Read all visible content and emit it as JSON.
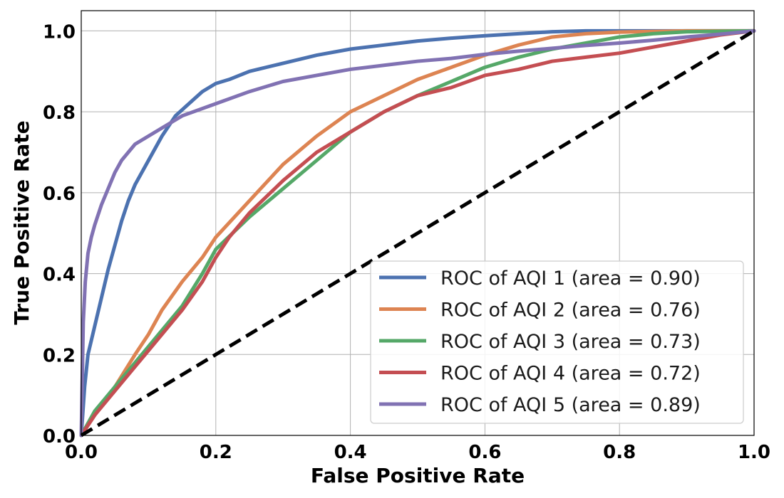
{
  "chart_data": {
    "type": "line",
    "title": "",
    "xlabel": "False Positive Rate",
    "ylabel": "True Positive Rate",
    "xlim": [
      0.0,
      1.0
    ],
    "ylim": [
      0.0,
      1.05
    ],
    "xticks": [
      "0.0",
      "0.2",
      "0.4",
      "0.6",
      "0.8",
      "1.0"
    ],
    "yticks": [
      "0.0",
      "0.2",
      "0.4",
      "0.6",
      "0.8",
      "1.0"
    ],
    "grid": true,
    "legend_position": "lower-right",
    "series": [
      {
        "name": "ROC of AQI 1 (area = 0.90)",
        "color": "#4c72b0",
        "x": [
          0.0,
          0.005,
          0.01,
          0.02,
          0.03,
          0.04,
          0.05,
          0.06,
          0.07,
          0.08,
          0.1,
          0.12,
          0.14,
          0.16,
          0.18,
          0.2,
          0.22,
          0.25,
          0.3,
          0.35,
          0.4,
          0.45,
          0.5,
          0.55,
          0.6,
          0.65,
          0.7,
          0.75,
          0.8,
          0.9,
          1.0
        ],
        "y": [
          0.0,
          0.12,
          0.2,
          0.27,
          0.34,
          0.41,
          0.47,
          0.53,
          0.58,
          0.62,
          0.68,
          0.74,
          0.79,
          0.82,
          0.85,
          0.87,
          0.88,
          0.9,
          0.92,
          0.94,
          0.955,
          0.965,
          0.975,
          0.982,
          0.988,
          0.993,
          0.998,
          1.0,
          1.0,
          1.0,
          1.0
        ]
      },
      {
        "name": "ROC of AQI 2 (area = 0.76)",
        "color": "#dd8452",
        "x": [
          0.0,
          0.02,
          0.05,
          0.08,
          0.1,
          0.12,
          0.15,
          0.18,
          0.2,
          0.25,
          0.3,
          0.35,
          0.4,
          0.45,
          0.5,
          0.55,
          0.6,
          0.65,
          0.7,
          0.75,
          0.8,
          0.9,
          1.0
        ],
        "y": [
          0.0,
          0.05,
          0.12,
          0.2,
          0.25,
          0.31,
          0.38,
          0.44,
          0.49,
          0.58,
          0.67,
          0.74,
          0.8,
          0.84,
          0.88,
          0.91,
          0.94,
          0.965,
          0.985,
          0.993,
          0.997,
          1.0,
          1.0
        ]
      },
      {
        "name": "ROC of AQI 3 (area = 0.73)",
        "color": "#55a868",
        "x": [
          0.0,
          0.02,
          0.05,
          0.08,
          0.1,
          0.12,
          0.15,
          0.18,
          0.2,
          0.25,
          0.3,
          0.35,
          0.4,
          0.45,
          0.5,
          0.55,
          0.6,
          0.65,
          0.7,
          0.75,
          0.8,
          0.85,
          0.9,
          1.0
        ],
        "y": [
          0.0,
          0.06,
          0.12,
          0.18,
          0.22,
          0.26,
          0.32,
          0.4,
          0.46,
          0.54,
          0.61,
          0.68,
          0.75,
          0.8,
          0.84,
          0.875,
          0.91,
          0.935,
          0.955,
          0.97,
          0.985,
          0.993,
          0.998,
          1.0
        ]
      },
      {
        "name": "ROC of AQI 4 (area = 0.72)",
        "color": "#c44e52",
        "x": [
          0.0,
          0.02,
          0.05,
          0.08,
          0.1,
          0.12,
          0.15,
          0.18,
          0.2,
          0.22,
          0.25,
          0.3,
          0.35,
          0.4,
          0.45,
          0.5,
          0.55,
          0.6,
          0.65,
          0.7,
          0.75,
          0.8,
          0.85,
          0.9,
          0.95,
          1.0
        ],
        "y": [
          0.0,
          0.05,
          0.11,
          0.17,
          0.21,
          0.25,
          0.31,
          0.38,
          0.44,
          0.49,
          0.55,
          0.63,
          0.7,
          0.75,
          0.8,
          0.84,
          0.86,
          0.89,
          0.905,
          0.925,
          0.935,
          0.945,
          0.96,
          0.975,
          0.99,
          1.0
        ]
      },
      {
        "name": "ROC of AQI 5 (area = 0.89)",
        "color": "#8172b3",
        "x": [
          0.0,
          0.003,
          0.006,
          0.01,
          0.015,
          0.02,
          0.03,
          0.04,
          0.05,
          0.06,
          0.07,
          0.08,
          0.1,
          0.12,
          0.15,
          0.2,
          0.25,
          0.3,
          0.35,
          0.4,
          0.45,
          0.5,
          0.55,
          0.6,
          0.65,
          0.7,
          0.75,
          0.8,
          0.85,
          0.9,
          0.95,
          1.0
        ],
        "y": [
          0.0,
          0.28,
          0.38,
          0.45,
          0.49,
          0.52,
          0.57,
          0.61,
          0.65,
          0.68,
          0.7,
          0.72,
          0.74,
          0.76,
          0.79,
          0.82,
          0.85,
          0.875,
          0.89,
          0.905,
          0.915,
          0.925,
          0.932,
          0.942,
          0.95,
          0.957,
          0.964,
          0.97,
          0.977,
          0.985,
          0.992,
          1.0
        ]
      }
    ],
    "reference_line": {
      "style": "dashed",
      "color": "#000000",
      "x": [
        0.0,
        1.0
      ],
      "y": [
        0.0,
        1.0
      ]
    }
  }
}
